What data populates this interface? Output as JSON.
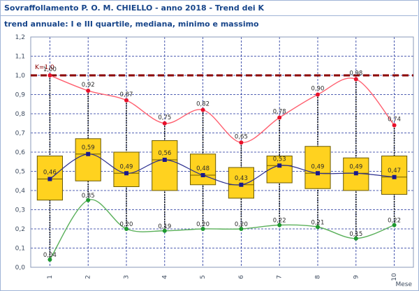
{
  "title": "Sovraffollamento P. O. M. CHIELLO - anno 2018 - Trend dei K",
  "subtitle": "trend annuale: I e III quartile, mediana, minimo e massimo",
  "colors": {
    "box_fill": "#ffd21f",
    "box_stroke": "#6b5a00",
    "median_line": "#2a2e8f",
    "max_line": "#ff6070",
    "min_line": "#5ab05a",
    "threshold": "#8b0000",
    "grid": "#1b2f9a",
    "axis_text": "#3c4a5e"
  },
  "chart_data": {
    "type": "box",
    "xlabel": "Mese",
    "categories": [
      "1",
      "2",
      "3",
      "4",
      "5",
      "6",
      "7",
      "8",
      "9",
      "10"
    ],
    "ylim": [
      0,
      1.2
    ],
    "yticks": [
      "0,0",
      "0,1",
      "0,2",
      "0,3",
      "0,4",
      "0,5",
      "0,6",
      "0,7",
      "0,8",
      "0,9",
      "1,0",
      "1,1",
      "1,2"
    ],
    "threshold": {
      "value": 1.0,
      "label": "K=1,0"
    },
    "q1": [
      0.35,
      0.45,
      0.42,
      0.4,
      0.43,
      0.36,
      0.44,
      0.41,
      0.4,
      0.38
    ],
    "q3": [
      0.58,
      0.67,
      0.6,
      0.66,
      0.59,
      0.52,
      0.58,
      0.63,
      0.57,
      0.58
    ],
    "median": [
      0.46,
      0.59,
      0.49,
      0.56,
      0.48,
      0.43,
      0.53,
      0.49,
      0.49,
      0.47
    ],
    "median_labels": [
      "0,46",
      "0,59",
      "0,49",
      "0,56",
      "0,48",
      "0,43",
      "0,53",
      "0,49",
      "0,49",
      "0,47"
    ],
    "max": [
      1.0,
      0.92,
      0.87,
      0.75,
      0.82,
      0.65,
      0.78,
      0.9,
      0.98,
      0.74
    ],
    "max_labels": [
      "1,00",
      "0,92",
      "0,87",
      "0,75",
      "0,82",
      "0,65",
      "0,78",
      "0,90",
      "0,98",
      "0,74"
    ],
    "min": [
      0.04,
      0.35,
      0.2,
      0.19,
      0.2,
      0.2,
      0.22,
      0.21,
      0.15,
      0.22
    ],
    "min_labels": [
      "0,04",
      "0,35",
      "0,20",
      "0,19",
      "0,20",
      "0,20",
      "0,22",
      "0,21",
      "0,15",
      "0,22"
    ]
  }
}
